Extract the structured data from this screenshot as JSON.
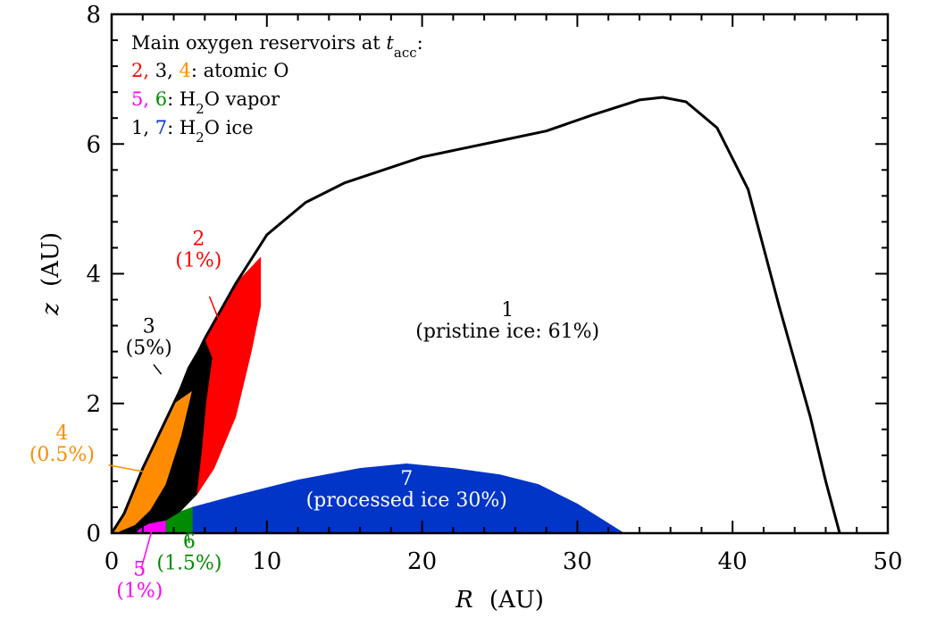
{
  "chart_data": {
    "type": "area",
    "xlabel": "R",
    "xunit": "(AU)",
    "ylabel": "z",
    "yunit": "(AU)",
    "xlim": [
      0,
      50
    ],
    "ylim": [
      0,
      8
    ],
    "x_ticks": [
      "0",
      "10",
      "20",
      "30",
      "40",
      "50"
    ],
    "y_ticks": [
      "0",
      "2",
      "4",
      "6",
      "8"
    ],
    "grid": false,
    "legend": {
      "title_prefix": "Main oxygen reservoirs at ",
      "title_var": "t",
      "title_sub": "acc",
      "title_suffix": ":",
      "lines": [
        {
          "parts": [
            {
              "text": "2, ",
              "color": "#ff0000"
            },
            {
              "text": "3, ",
              "color": "#000000"
            },
            {
              "text": "4",
              "color": "#ff8c00"
            },
            {
              "text": ": atomic O",
              "color": "#000000"
            }
          ]
        },
        {
          "parts": [
            {
              "text": "5, ",
              "color": "#ff00ff"
            },
            {
              "text": "6",
              "color": "#008c00"
            },
            {
              "text": ": H",
              "color": "#000000"
            },
            {
              "text": "2",
              "color": "#000000",
              "sub": true
            },
            {
              "text": "O vapor",
              "color": "#000000"
            }
          ]
        },
        {
          "parts": [
            {
              "text": "1, ",
              "color": "#000000"
            },
            {
              "text": "7",
              "color": "#0035c8"
            },
            {
              "text": ": H",
              "color": "#000000"
            },
            {
              "text": "2",
              "color": "#000000",
              "sub": true
            },
            {
              "text": "O ice",
              "color": "#000000"
            }
          ]
        }
      ]
    },
    "boundary_curve": [
      [
        0,
        0
      ],
      [
        0.8,
        0.3
      ],
      [
        2,
        1.0
      ],
      [
        4,
        2.0
      ],
      [
        6,
        3.0
      ],
      [
        8,
        3.85
      ],
      [
        10,
        4.6
      ],
      [
        12.5,
        5.1
      ],
      [
        15,
        5.4
      ],
      [
        20,
        5.8
      ],
      [
        25,
        6.05
      ],
      [
        28,
        6.2
      ],
      [
        31,
        6.45
      ],
      [
        34,
        6.68
      ],
      [
        35.5,
        6.72
      ],
      [
        37,
        6.65
      ],
      [
        39,
        6.25
      ],
      [
        41,
        5.3
      ],
      [
        43,
        3.5
      ],
      [
        45,
        1.8
      ],
      [
        46,
        0.8
      ],
      [
        46.9,
        0
      ]
    ],
    "regions": [
      {
        "id": "7",
        "name": "processed ice",
        "fill": "#0035c8",
        "polygon": [
          [
            5.2,
            0
          ],
          [
            5.2,
            0.4
          ],
          [
            8,
            0.58
          ],
          [
            12,
            0.82
          ],
          [
            16,
            1.0
          ],
          [
            19,
            1.07
          ],
          [
            22,
            1.0
          ],
          [
            25,
            0.9
          ],
          [
            27.5,
            0.75
          ],
          [
            30,
            0.45
          ],
          [
            33,
            0
          ]
        ],
        "label": "7",
        "sublabel": "(processed ice 30%)",
        "label_color": "#ffffff",
        "label_at": [
          19,
          0.55
        ]
      },
      {
        "id": "5",
        "name": "H2O vapor",
        "fill": "#ff00ff",
        "polygon": [
          [
            1.5,
            0
          ],
          [
            1.8,
            0.07
          ],
          [
            2.4,
            0.15
          ],
          [
            3.5,
            0.2
          ],
          [
            3.5,
            0
          ]
        ],
        "label": "5",
        "sublabel": "(1%)",
        "label_color": "#ff00ff",
        "label_at": [
          1.8,
          -0.85
        ],
        "leader": [
          [
            2.6,
            0.05
          ],
          [
            1.9,
            -0.55
          ]
        ]
      },
      {
        "id": "6",
        "name": "H2O vapor",
        "fill": "#008c00",
        "polygon": [
          [
            3.5,
            0
          ],
          [
            3.5,
            0.2
          ],
          [
            4.4,
            0.33
          ],
          [
            5.2,
            0.4
          ],
          [
            5.2,
            0
          ]
        ],
        "label": "6",
        "sublabel": "(1.5%)",
        "label_color": "#008c00",
        "label_at": [
          5.0,
          -0.42
        ],
        "leader": [
          [
            4.9,
            0.03
          ],
          [
            5.0,
            -0.15
          ]
        ]
      },
      {
        "id": "4",
        "name": "atomic O",
        "fill": "#ff8c00",
        "polygon": [
          [
            0,
            0
          ],
          [
            0.8,
            0.3
          ],
          [
            2,
            1.0
          ],
          [
            4,
            2.0
          ],
          [
            5.2,
            2.2
          ],
          [
            4.5,
            1.5
          ],
          [
            3.5,
            0.75
          ],
          [
            2.5,
            0.35
          ],
          [
            1.5,
            0.12
          ],
          [
            0.5,
            0.02
          ]
        ],
        "label": "4",
        "sublabel": "(0.5%)",
        "label_color": "#ff8c00",
        "label_at": [
          -3.2,
          1.25
        ],
        "leader": [
          [
            -0.2,
            1.05
          ],
          [
            2.0,
            0.95
          ]
        ]
      },
      {
        "id": "3",
        "name": "atomic O",
        "fill": "#000000",
        "polygon": [
          [
            0.5,
            0.02
          ],
          [
            1.5,
            0.12
          ],
          [
            2.5,
            0.35
          ],
          [
            3.5,
            0.75
          ],
          [
            4.5,
            1.5
          ],
          [
            5.2,
            2.2
          ],
          [
            4,
            2.0
          ],
          [
            4.9,
            2.55
          ],
          [
            6,
            3.0
          ],
          [
            6.5,
            2.7
          ],
          [
            6.1,
            2.0
          ],
          [
            5.8,
            1.2
          ],
          [
            5.5,
            0.6
          ],
          [
            4.4,
            0.33
          ],
          [
            3.5,
            0.2
          ],
          [
            2.4,
            0.15
          ],
          [
            1.8,
            0.07
          ],
          [
            1.5,
            0
          ]
        ],
        "label": "3",
        "sublabel": "(5%)",
        "label_color": "#000000",
        "label_at": [
          2.4,
          2.9
        ],
        "leader": [
          [
            2.7,
            2.6
          ],
          [
            3.2,
            2.45
          ]
        ]
      },
      {
        "id": "2",
        "name": "atomic O",
        "fill": "#ff0000",
        "polygon": [
          [
            6,
            3.0
          ],
          [
            8,
            3.85
          ],
          [
            9.6,
            4.25
          ],
          [
            9.6,
            3.5
          ],
          [
            9.0,
            2.8
          ],
          [
            8.0,
            1.8
          ],
          [
            6.6,
            1.0
          ],
          [
            5.5,
            0.6
          ],
          [
            5.8,
            1.2
          ],
          [
            6.1,
            2.0
          ],
          [
            6.5,
            2.7
          ]
        ],
        "label": "2",
        "sublabel": "(1%)",
        "label_color": "#ff0000",
        "label_at": [
          5.6,
          4.25
        ],
        "leader": [
          [
            6.3,
            3.65
          ],
          [
            7.3,
            3.05
          ]
        ]
      },
      {
        "id": "1",
        "name": "pristine ice",
        "fill": "none",
        "label": "1",
        "sublabel": "(pristine ice: 61%)",
        "label_color": "#000000",
        "label_at": [
          25.5,
          3.15
        ]
      }
    ]
  }
}
